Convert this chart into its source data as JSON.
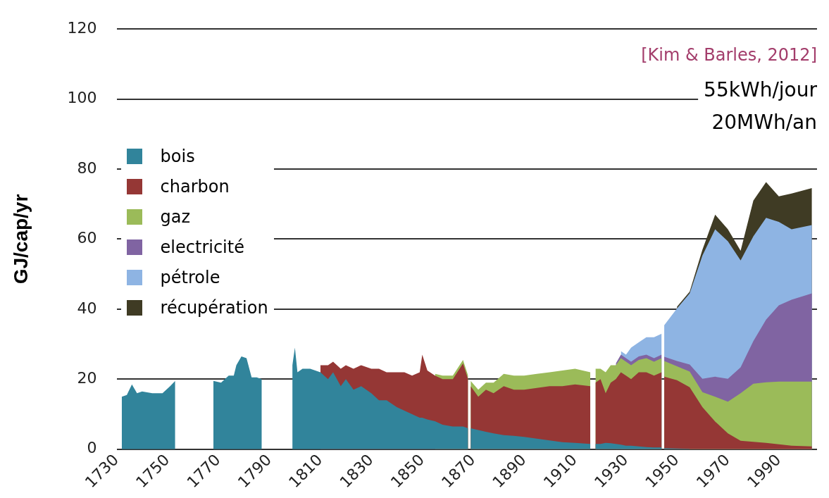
{
  "chart_data": {
    "type": "area",
    "ylabel": "GJ/cap/yr",
    "stacked": true,
    "grid": "y",
    "legend": "top left",
    "annotations": [
      "[Kim & Barles, 2012]",
      "55kWh/jour",
      "20MWh/an"
    ],
    "xlim": [
      1730,
      2005
    ],
    "xticks": [
      1730,
      1750,
      1770,
      1790,
      1810,
      1830,
      1850,
      1870,
      1890,
      1910,
      1930,
      1950,
      1970,
      1990
    ],
    "ylim": [
      0,
      120
    ],
    "yticks": [
      0,
      20,
      40,
      60,
      80,
      100,
      120
    ],
    "x": [
      1732,
      1734,
      1736,
      1738,
      1740,
      1744,
      1748,
      1751,
      1753,
      1760,
      1768,
      1771,
      1774,
      1776,
      1777,
      1779,
      1781,
      1783,
      1785,
      1787,
      1793,
      1799,
      1800,
      1801,
      1803,
      1806,
      1810,
      1813,
      1815,
      1818,
      1820,
      1823,
      1826,
      1830,
      1833,
      1836,
      1840,
      1843,
      1846,
      1849,
      1850,
      1852,
      1855,
      1858,
      1862,
      1866,
      1868,
      1868.5,
      1869,
      1872,
      1875,
      1878,
      1882,
      1886,
      1890,
      1895,
      1900,
      1905,
      1910,
      1916,
      1917,
      1918,
      1920,
      1922,
      1924,
      1926,
      1928,
      1930,
      1932,
      1935,
      1938,
      1941,
      1944,
      1944.5,
      1945,
      1950,
      1955,
      1960,
      1965,
      1970,
      1975,
      1980,
      1985,
      1990,
      1995,
      2003
    ],
    "series": [
      {
        "name": "bois",
        "color": "#31849b",
        "values": [
          15,
          15.5,
          18.5,
          16,
          16.5,
          16,
          16,
          18,
          19.5,
          null,
          19.5,
          19,
          21,
          21,
          24,
          26.5,
          26,
          20.5,
          20.5,
          20,
          null,
          24,
          29,
          22,
          23,
          23,
          22,
          20,
          22,
          18,
          20,
          17,
          18,
          16,
          14,
          14,
          12,
          11,
          10,
          9,
          9,
          8.5,
          8,
          7,
          6.5,
          6.5,
          6,
          null,
          6,
          5.5,
          5,
          4.5,
          4,
          3.8,
          3.5,
          3,
          2.5,
          2,
          1.8,
          1.5,
          null,
          1.5,
          1.5,
          1.8,
          1.7,
          1.5,
          1.3,
          1,
          1,
          0.8,
          0.6,
          0.5,
          0.5,
          null,
          0.3,
          0.2,
          0.1,
          null,
          null,
          null,
          null,
          null,
          null,
          null,
          null,
          null
        ]
      },
      {
        "name": "charbon",
        "color": "#953735",
        "values": [
          null,
          null,
          null,
          null,
          null,
          null,
          null,
          null,
          null,
          null,
          null,
          null,
          null,
          null,
          null,
          null,
          null,
          null,
          null,
          null,
          null,
          null,
          null,
          null,
          null,
          null,
          2,
          4,
          3,
          5,
          4,
          6,
          6,
          7,
          9,
          8,
          10,
          11,
          11,
          13,
          18,
          14,
          13,
          13,
          13.5,
          18,
          14,
          null,
          12,
          9.5,
          12,
          11.5,
          14,
          13.2,
          13.5,
          14.5,
          15.5,
          16,
          16.7,
          16.5,
          null,
          17.5,
          18.5,
          14.2,
          17.3,
          18.5,
          20.7,
          20,
          19,
          21.2,
          21.4,
          20.5,
          21.5,
          null,
          20.4,
          19.5,
          17.6,
          12,
          7.9,
          4.5,
          2.4,
          2.1,
          1.8,
          1.4,
          1,
          0.8
        ]
      },
      {
        "name": "gaz",
        "color": "#9bbb59",
        "values": [
          null,
          null,
          null,
          null,
          null,
          null,
          null,
          null,
          null,
          null,
          null,
          null,
          null,
          null,
          null,
          null,
          null,
          null,
          null,
          null,
          null,
          null,
          null,
          null,
          null,
          null,
          null,
          null,
          null,
          null,
          null,
          null,
          null,
          null,
          null,
          null,
          null,
          null,
          null,
          null,
          null,
          null,
          0.5,
          1,
          1,
          1,
          1,
          null,
          1.5,
          2,
          2,
          3,
          3.5,
          4,
          4,
          4,
          4,
          4.5,
          4.5,
          4,
          null,
          4,
          3,
          6,
          5,
          4,
          4,
          4,
          4,
          3.5,
          4,
          4,
          4,
          null,
          4.5,
          4,
          4.5,
          4.3,
          7.1,
          9.1,
          13.6,
          16.6,
          17.3,
          17.9,
          18.3,
          18.5
        ]
      },
      {
        "name": "electricité",
        "color": "#8064a2",
        "values": [
          null,
          null,
          null,
          null,
          null,
          null,
          null,
          null,
          null,
          null,
          null,
          null,
          null,
          null,
          null,
          null,
          null,
          null,
          null,
          null,
          null,
          null,
          null,
          null,
          null,
          null,
          null,
          null,
          null,
          null,
          null,
          null,
          null,
          null,
          null,
          null,
          null,
          null,
          null,
          null,
          null,
          null,
          null,
          null,
          null,
          null,
          null,
          null,
          null,
          null,
          null,
          null,
          null,
          null,
          null,
          null,
          null,
          null,
          null,
          null,
          null,
          null,
          null,
          null,
          null,
          0.5,
          1,
          1,
          1,
          1,
          1,
          1,
          1,
          null,
          1.2,
          1.5,
          2,
          3.8,
          5.7,
          6.5,
          7.4,
          12.2,
          17.9,
          21.8,
          23.4,
          25.2
        ]
      },
      {
        "name": "pétrole",
        "color": "#8eb4e3",
        "values": [
          null,
          null,
          null,
          null,
          null,
          null,
          null,
          null,
          null,
          null,
          null,
          null,
          null,
          null,
          null,
          null,
          null,
          null,
          null,
          null,
          null,
          null,
          null,
          null,
          null,
          null,
          null,
          null,
          null,
          null,
          null,
          null,
          null,
          null,
          null,
          null,
          null,
          null,
          null,
          null,
          null,
          null,
          null,
          null,
          null,
          null,
          null,
          null,
          null,
          null,
          null,
          null,
          null,
          null,
          null,
          null,
          null,
          null,
          null,
          null,
          null,
          null,
          null,
          null,
          null,
          null,
          1,
          1,
          4,
          4,
          5,
          6,
          6,
          null,
          9,
          15,
          20.3,
          35.2,
          42.1,
          39.3,
          30.5,
          29.9,
          29.1,
          23.8,
          20.1,
          19.5
        ]
      },
      {
        "name": "récupération",
        "color": "#3f3b24",
        "values": [
          null,
          null,
          null,
          null,
          null,
          null,
          null,
          null,
          null,
          null,
          null,
          null,
          null,
          null,
          null,
          null,
          null,
          null,
          null,
          null,
          null,
          null,
          null,
          null,
          null,
          null,
          null,
          null,
          null,
          null,
          null,
          null,
          null,
          null,
          null,
          null,
          null,
          null,
          null,
          null,
          null,
          null,
          null,
          null,
          null,
          null,
          null,
          null,
          null,
          null,
          null,
          null,
          null,
          null,
          null,
          null,
          null,
          null,
          null,
          null,
          null,
          null,
          null,
          null,
          null,
          null,
          null,
          null,
          null,
          null,
          null,
          null,
          null,
          null,
          null,
          0.5,
          0.5,
          1.7,
          4.2,
          3.4,
          2.8,
          10.2,
          10.2,
          7.3,
          10.2,
          10.6
        ]
      }
    ]
  }
}
